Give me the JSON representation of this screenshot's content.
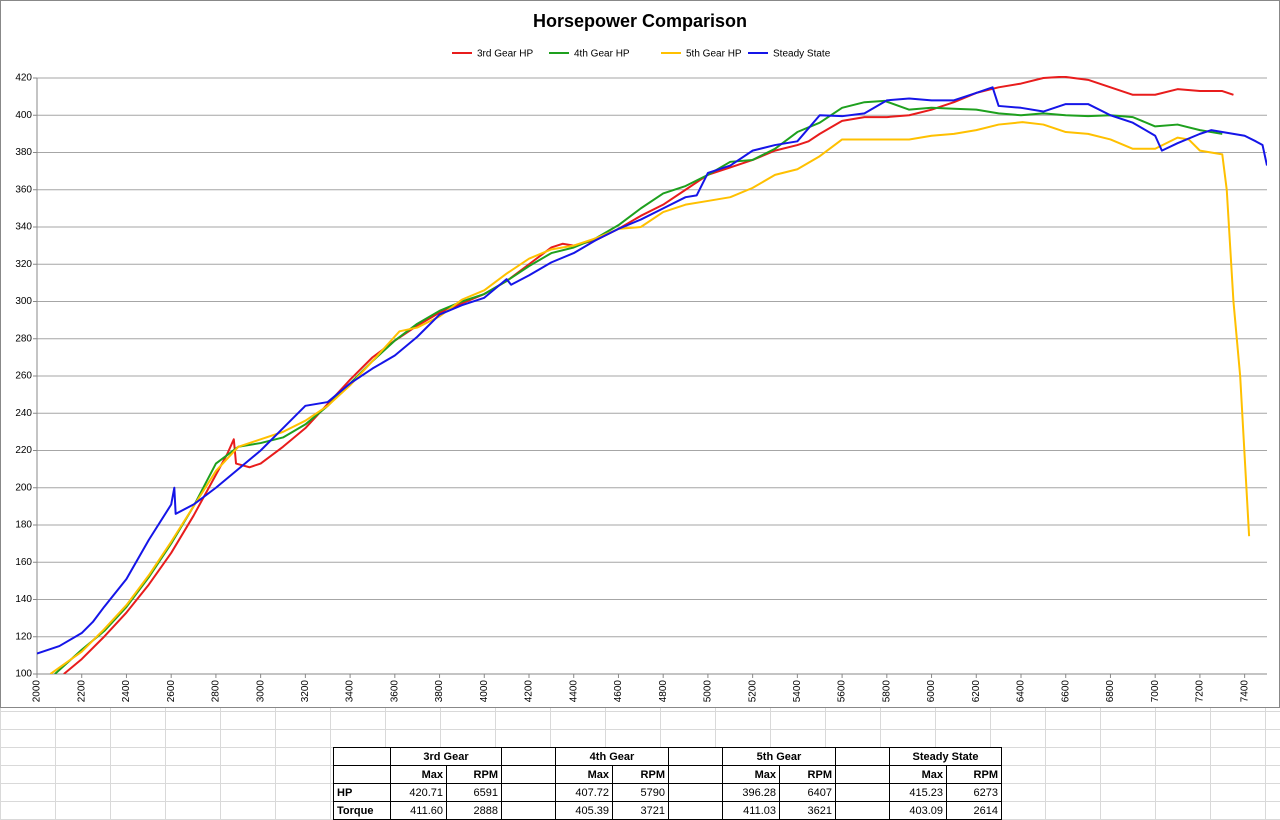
{
  "chart_data": {
    "type": "line",
    "title": "Horsepower Comparison",
    "xlim": [
      2000,
      7500
    ],
    "xticks": [
      2000,
      2200,
      2400,
      2600,
      2800,
      3000,
      3200,
      3400,
      3600,
      3800,
      4000,
      4200,
      4400,
      4600,
      4800,
      5000,
      5200,
      5400,
      5600,
      5800,
      6000,
      6200,
      6400,
      6600,
      6800,
      7000,
      7200,
      7400
    ],
    "ylim": [
      100,
      420
    ],
    "yticks": [
      100,
      120,
      140,
      160,
      180,
      200,
      220,
      240,
      260,
      280,
      300,
      320,
      340,
      360,
      380,
      400,
      420
    ],
    "grid": true,
    "legend": "top",
    "series": [
      {
        "name": "3rd Gear HP",
        "color": "#e81c1c",
        "x": [
          2120,
          2200,
          2300,
          2400,
          2500,
          2600,
          2700,
          2800,
          2850,
          2880,
          2890,
          2950,
          3000,
          3100,
          3200,
          3300,
          3400,
          3500,
          3600,
          3700,
          3800,
          3900,
          4000,
          4100,
          4200,
          4300,
          4350,
          4400,
          4500,
          4600,
          4700,
          4800,
          4900,
          5000,
          5100,
          5200,
          5300,
          5400,
          5450,
          5500,
          5600,
          5700,
          5800,
          5900,
          6000,
          6100,
          6200,
          6300,
          6400,
          6500,
          6591,
          6700,
          6800,
          6900,
          7000,
          7100,
          7200,
          7300,
          7350
        ],
        "values": [
          100,
          108,
          120,
          133,
          148,
          165,
          185,
          207,
          218,
          226,
          213,
          211,
          213,
          222,
          232,
          245,
          258,
          270,
          279,
          287,
          294,
          299,
          304,
          311,
          320,
          329,
          331,
          330,
          333,
          339,
          346,
          352,
          360,
          368,
          372,
          376,
          381,
          384,
          386,
          390,
          397,
          399,
          399,
          400,
          403,
          407,
          412,
          415,
          417,
          420,
          420.7,
          419,
          415,
          411,
          411,
          414,
          413,
          413,
          411
        ]
      },
      {
        "name": "4th Gear HP",
        "color": "#1ea01e",
        "x": [
          2080,
          2200,
          2300,
          2400,
          2500,
          2600,
          2700,
          2800,
          2900,
          3000,
          3100,
          3200,
          3300,
          3400,
          3500,
          3600,
          3700,
          3800,
          3900,
          4000,
          4100,
          4200,
          4300,
          4400,
          4500,
          4600,
          4700,
          4800,
          4900,
          5000,
          5100,
          5200,
          5300,
          5400,
          5500,
          5600,
          5700,
          5790,
          5900,
          6000,
          6100,
          6200,
          6300,
          6400,
          6500,
          6600,
          6700,
          6800,
          6900,
          7000,
          7100,
          7200,
          7300
        ],
        "values": [
          100,
          113,
          123,
          136,
          152,
          170,
          190,
          213,
          222,
          224,
          227,
          234,
          244,
          256,
          268,
          279,
          288,
          295,
          300,
          304,
          311,
          319,
          326,
          329,
          334,
          341,
          350,
          358,
          362,
          368,
          375,
          376,
          382,
          391,
          396,
          404,
          407,
          407.7,
          403,
          404,
          403.5,
          403,
          401,
          400,
          401,
          400,
          399.5,
          400,
          399,
          394,
          395,
          392,
          390
        ]
      },
      {
        "name": "5th Gear HP",
        "color": "#ffc000",
        "x": [
          2060,
          2200,
          2300,
          2400,
          2500,
          2600,
          2700,
          2800,
          2900,
          3000,
          3100,
          3200,
          3300,
          3400,
          3500,
          3621,
          3700,
          3800,
          3900,
          4000,
          4100,
          4200,
          4300,
          4400,
          4500,
          4600,
          4700,
          4800,
          4900,
          5000,
          5100,
          5200,
          5300,
          5400,
          5500,
          5600,
          5700,
          5800,
          5900,
          6000,
          6100,
          6200,
          6300,
          6407,
          6500,
          6600,
          6700,
          6800,
          6900,
          7000,
          7100,
          7150,
          7200,
          7250,
          7300,
          7320,
          7350,
          7380,
          7420
        ],
        "values": [
          100,
          112,
          124,
          137,
          153,
          171,
          190,
          209,
          222,
          226,
          230,
          236,
          244,
          255,
          268,
          284,
          286,
          292,
          301,
          306,
          315,
          323,
          328,
          330,
          334,
          339,
          340,
          348,
          352,
          354,
          356,
          361,
          368,
          371,
          378,
          387,
          387,
          387,
          387,
          389,
          390,
          392,
          395,
          396.3,
          395,
          391,
          390,
          387,
          382,
          382,
          388,
          387,
          381,
          380,
          379,
          360,
          300,
          260,
          174
        ]
      },
      {
        "name": "Steady State",
        "color": "#1515e8",
        "x": [
          2000,
          2100,
          2200,
          2250,
          2300,
          2400,
          2500,
          2600,
          2614,
          2620,
          2700,
          2800,
          2900,
          3000,
          3100,
          3200,
          3300,
          3400,
          3500,
          3600,
          3700,
          3800,
          3900,
          4000,
          4100,
          4120,
          4200,
          4300,
          4400,
          4500,
          4600,
          4700,
          4800,
          4900,
          4950,
          5000,
          5100,
          5200,
          5300,
          5400,
          5500,
          5600,
          5700,
          5800,
          5900,
          6000,
          6100,
          6200,
          6273,
          6300,
          6400,
          6500,
          6600,
          6700,
          6800,
          6900,
          7000,
          7030,
          7100,
          7200,
          7250,
          7300,
          7400,
          7450,
          7480,
          7500
        ],
        "values": [
          111,
          115,
          122,
          128,
          136,
          151,
          172,
          191,
          200,
          186,
          191,
          200,
          210,
          220,
          232,
          244,
          246,
          256,
          264,
          271,
          281,
          293,
          298,
          302,
          312,
          309,
          314,
          321,
          326,
          333,
          339,
          344,
          350,
          356,
          357,
          369,
          373,
          381,
          384,
          386,
          400,
          399.5,
          401,
          408,
          409,
          408,
          408,
          412,
          415,
          405,
          404,
          402,
          406,
          406,
          400,
          396,
          389,
          381,
          385,
          390,
          392,
          391,
          389,
          386,
          384,
          373
        ]
      }
    ]
  },
  "table": {
    "groups": [
      {
        "name": "3rd Gear",
        "columns": [
          "Max",
          "RPM"
        ]
      },
      {
        "name": "4th Gear",
        "columns": [
          "Max",
          "RPM"
        ]
      },
      {
        "name": "5th Gear",
        "columns": [
          "Max",
          "RPM"
        ]
      },
      {
        "name": "Steady State",
        "columns": [
          "Max",
          "RPM"
        ]
      }
    ],
    "rows": [
      {
        "label": "HP",
        "cells": [
          "420.71",
          "6591",
          "407.72",
          "5790",
          "396.28",
          "6407",
          "415.23",
          "6273"
        ]
      },
      {
        "label": "Torque",
        "cells": [
          "411.60",
          "2888",
          "405.39",
          "3721",
          "411.03",
          "3621",
          "403.09",
          "2614"
        ]
      }
    ]
  }
}
